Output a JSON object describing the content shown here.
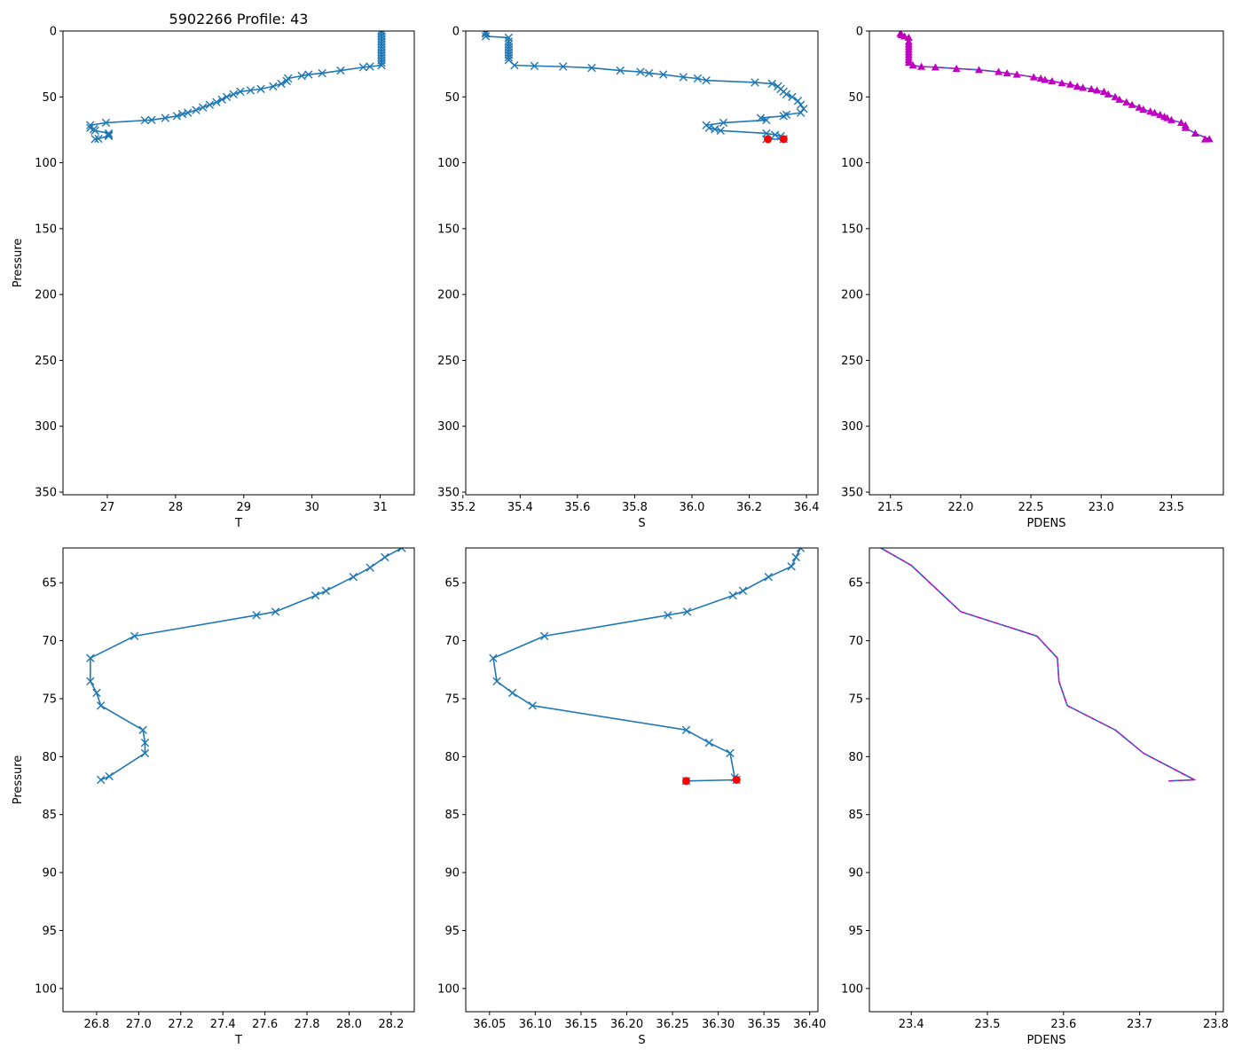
{
  "figure": {
    "title": "5902266 Profile: 43",
    "colors": {
      "line": "#1f77b4",
      "flag": "#ff0000",
      "density": "#c000c0",
      "density_dash": "#1f77b4",
      "axis": "#000000"
    }
  },
  "chart_data": [
    {
      "id": "t_full",
      "type": "line",
      "xlabel": "T",
      "ylabel": "Pressure",
      "xlim": [
        26.35,
        31.5
      ],
      "ylim": [
        352,
        0
      ],
      "xticks": [
        27,
        28,
        29,
        30,
        31
      ],
      "yticks": [
        0,
        50,
        100,
        150,
        200,
        250,
        300,
        350
      ],
      "marker": "x",
      "series": [
        {
          "name": "T",
          "x": [
            31.02,
            31.02,
            31.02,
            31.02,
            31.02,
            31.02,
            31.02,
            31.02,
            31.02,
            31.02,
            31.02,
            31.02,
            31.02,
            31.02,
            30.85,
            30.75,
            30.42,
            30.15,
            29.95,
            29.85,
            29.65,
            29.63,
            29.55,
            29.43,
            29.25,
            29.1,
            28.95,
            28.85,
            28.75,
            28.68,
            28.6,
            28.5,
            28.4,
            28.3,
            28.18,
            28.1,
            28.02,
            27.85,
            27.65,
            27.55,
            26.98,
            26.75,
            26.75,
            26.8,
            26.82,
            27.02,
            27.02,
            27.02,
            26.87,
            26.82
          ],
          "y": [
            0,
            2,
            4,
            6,
            8,
            10,
            12,
            14,
            16,
            18,
            20,
            22,
            24,
            26,
            27,
            27.5,
            30,
            32,
            33,
            34,
            36,
            38,
            40,
            42,
            44,
            45,
            46,
            48,
            50,
            52,
            54,
            56,
            58,
            60,
            62,
            63,
            64.5,
            66,
            67.5,
            67.8,
            69.6,
            71.5,
            73.5,
            74.5,
            75.6,
            77.7,
            78.8,
            79.7,
            81.7,
            82
          ]
        }
      ]
    },
    {
      "id": "s_full",
      "type": "line",
      "xlabel": "S",
      "ylabel": "",
      "xlim": [
        35.21,
        36.44
      ],
      "ylim": [
        352,
        0
      ],
      "xticks": [
        35.2,
        35.4,
        35.6,
        35.8,
        36.0,
        36.2,
        36.4
      ],
      "yticks": [
        0,
        50,
        100,
        150,
        200,
        250,
        300,
        350
      ],
      "marker": "x",
      "series": [
        {
          "name": "S",
          "x": [
            35.28,
            35.28,
            35.28,
            35.36,
            35.36,
            35.36,
            35.36,
            35.36,
            35.36,
            35.36,
            35.36,
            35.36,
            35.38,
            35.45,
            35.55,
            35.65,
            35.75,
            35.82,
            35.85,
            35.9,
            35.97,
            36.02,
            36.05,
            36.22,
            36.28,
            36.3,
            36.31,
            36.32,
            36.33,
            36.35,
            36.37,
            36.38,
            36.39,
            36.38,
            36.33,
            36.32,
            36.24,
            36.26,
            36.11,
            36.05,
            36.06,
            36.08,
            36.1,
            36.26,
            36.29,
            36.31,
            36.32,
            36.26
          ],
          "y": [
            1,
            2,
            4,
            5,
            8,
            10,
            12,
            14,
            16,
            18,
            20,
            22,
            26,
            26.5,
            27,
            28,
            30,
            31,
            32,
            33,
            35,
            36,
            37.5,
            39,
            40,
            42,
            44,
            46,
            48,
            50,
            53,
            56,
            59,
            62,
            63.5,
            64.5,
            66,
            67.6,
            69.6,
            71.5,
            73.5,
            74.5,
            75.6,
            77.7,
            78.8,
            79.7,
            82,
            82.1
          ]
        },
        {
          "name": "flag",
          "x": [
            36.32,
            36.265
          ],
          "y": [
            82,
            82.1
          ]
        }
      ]
    },
    {
      "id": "pdens_full",
      "type": "line",
      "xlabel": "PDENS",
      "ylabel": "",
      "xlim": [
        21.35,
        23.87
      ],
      "ylim": [
        352,
        0
      ],
      "xticks": [
        21.5,
        22.0,
        22.5,
        23.0,
        23.5
      ],
      "yticks": [
        0,
        50,
        100,
        150,
        200,
        250,
        300,
        350
      ],
      "marker": "triangle",
      "series": [
        {
          "name": "PDENS",
          "x": [
            21.57,
            21.58,
            21.6,
            21.63,
            21.63,
            21.63,
            21.63,
            21.63,
            21.63,
            21.63,
            21.63,
            21.63,
            21.63,
            21.66,
            21.72,
            21.82,
            21.97,
            22.13,
            22.27,
            22.33,
            22.4,
            22.52,
            22.57,
            22.6,
            22.65,
            22.72,
            22.78,
            22.83,
            22.87,
            22.93,
            22.97,
            23.02,
            23.05,
            23.1,
            23.13,
            23.18,
            23.22,
            23.27,
            23.3,
            23.35,
            23.38,
            23.42,
            23.45,
            23.47,
            23.5,
            23.57,
            23.6,
            23.6,
            23.67,
            23.77,
            23.74
          ],
          "y": [
            2,
            3,
            4,
            5,
            8,
            10,
            12,
            14,
            16,
            18,
            20,
            22,
            24,
            26,
            27,
            27.5,
            28.5,
            29.5,
            31,
            32,
            33,
            35,
            36,
            37,
            38,
            39.5,
            40.5,
            42,
            43,
            44,
            45,
            46,
            48,
            50,
            52,
            54,
            56,
            58,
            59.5,
            61,
            62,
            63.5,
            65,
            66,
            67.5,
            69.6,
            71.5,
            73.5,
            77.7,
            82,
            82.1
          ]
        }
      ]
    },
    {
      "id": "t_zoom",
      "type": "line",
      "xlabel": "T",
      "ylabel": "Pressure",
      "xlim": [
        26.64,
        28.31
      ],
      "ylim": [
        102,
        62
      ],
      "xticks": [
        26.8,
        27.0,
        27.2,
        27.4,
        27.6,
        27.8,
        28.0,
        28.2
      ],
      "yticks": [
        65,
        70,
        75,
        80,
        85,
        90,
        95,
        100
      ],
      "marker": "x",
      "series": [
        {
          "name": "T",
          "x": [
            28.25,
            28.17,
            28.1,
            28.02,
            27.89,
            27.84,
            27.65,
            27.56,
            26.98,
            26.77,
            26.77,
            26.8,
            26.82,
            27.02,
            27.03,
            27.03,
            26.86,
            26.82
          ],
          "y": [
            62,
            62.8,
            63.7,
            64.5,
            65.7,
            66.1,
            67.5,
            67.8,
            69.6,
            71.5,
            73.5,
            74.5,
            75.6,
            77.7,
            78.8,
            79.7,
            81.7,
            82
          ]
        }
      ]
    },
    {
      "id": "s_zoom",
      "type": "line",
      "xlabel": "S",
      "ylabel": "",
      "xlim": [
        36.024,
        36.409
      ],
      "ylim": [
        102,
        62
      ],
      "xticks": [
        36.05,
        36.1,
        36.15,
        36.2,
        36.25,
        36.3,
        36.35,
        36.4
      ],
      "yticks": [
        65,
        70,
        75,
        80,
        85,
        90,
        95,
        100
      ],
      "marker": "x",
      "series": [
        {
          "name": "S",
          "x": [
            36.39,
            36.385,
            36.38,
            36.355,
            36.327,
            36.316,
            36.266,
            36.245,
            36.11,
            36.054,
            36.058,
            36.075,
            36.097,
            36.265,
            36.29,
            36.313,
            36.318,
            36.32,
            36.265
          ],
          "y": [
            62,
            62.8,
            63.6,
            64.5,
            65.7,
            66.1,
            67.5,
            67.8,
            69.6,
            71.5,
            73.5,
            74.5,
            75.6,
            77.7,
            78.8,
            79.7,
            81.8,
            82,
            82.1
          ]
        },
        {
          "name": "flag",
          "x": [
            36.32,
            36.265
          ],
          "y": [
            82,
            82.1
          ]
        }
      ]
    },
    {
      "id": "pdens_zoom",
      "type": "line",
      "xlabel": "PDENS",
      "ylabel": "",
      "xlim": [
        23.345,
        23.81
      ],
      "ylim": [
        102,
        62
      ],
      "xticks": [
        23.4,
        23.5,
        23.6,
        23.7,
        23.8
      ],
      "yticks": [
        65,
        70,
        75,
        80,
        85,
        90,
        95,
        100
      ],
      "marker": "none",
      "series": [
        {
          "name": "PDENS",
          "x": [
            23.36,
            23.4,
            23.465,
            23.565,
            23.592,
            23.594,
            23.605,
            23.668,
            23.705,
            23.772,
            23.738
          ],
          "y": [
            62,
            63.5,
            67.5,
            69.6,
            71.5,
            73.5,
            75.6,
            77.7,
            79.7,
            82,
            82.1
          ]
        }
      ]
    }
  ]
}
